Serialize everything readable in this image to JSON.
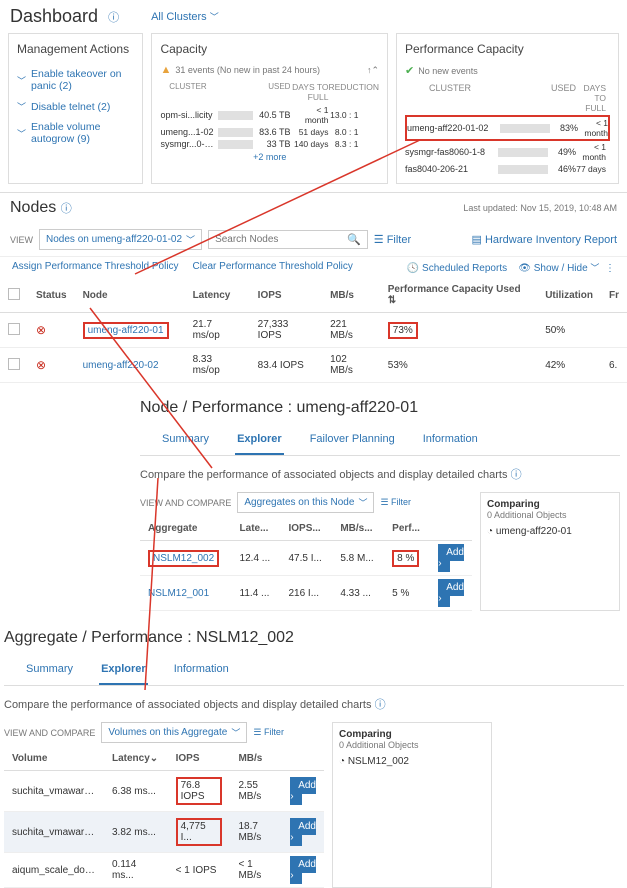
{
  "dashboard": {
    "title": "Dashboard",
    "scope": "All Clusters"
  },
  "mgmt": {
    "title": "Management Actions",
    "items": [
      {
        "label": "Enable takeover on panic (2)"
      },
      {
        "label": "Disable telnet (2)"
      },
      {
        "label": "Enable volume autogrow (9)"
      }
    ]
  },
  "capacity": {
    "title": "Capacity",
    "events": "31 events (No new in past 24 hours)",
    "headers": {
      "cluster": "CLUSTER",
      "used": "USED",
      "days": "DAYS TO FULL",
      "red": "REDUCTION"
    },
    "rows": [
      {
        "name": "opm-si...licity",
        "pct": 60,
        "used": "40.5 TB",
        "days": "< 1 month",
        "red": "13.0 : 1"
      },
      {
        "name": "umeng...1-02",
        "pct": 80,
        "used": "83.6 TB",
        "days": "51 days",
        "red": "8.0 : 1"
      },
      {
        "name": "sysmgr...0-1-8",
        "pct": 40,
        "used": "33 TB",
        "days": "140 days",
        "red": "8.3 : 1"
      }
    ],
    "more": "+2 more"
  },
  "perfcap": {
    "title": "Performance Capacity",
    "events": "No new events",
    "headers": {
      "cluster": "CLUSTER",
      "used": "USED",
      "days": "DAYS TO FULL"
    },
    "rows": [
      {
        "name": "umeng-aff220-01-02",
        "pct": 83,
        "used": "83%",
        "days": "< 1 month",
        "hl": true
      },
      {
        "name": "sysmgr-fas8060-1-8",
        "pct": 49,
        "used": "49%",
        "days": "< 1 month"
      },
      {
        "name": "fas8040-206-21",
        "pct": 46,
        "used": "46%",
        "days": "77 days"
      }
    ]
  },
  "nodes": {
    "title": "Nodes",
    "updated": "Last updated: Nov 15, 2019, 10:48 AM",
    "view_label": "VIEW",
    "view_value": "Nodes on umeng-aff220-01-02",
    "search_ph": "Search Nodes",
    "filter": "Filter",
    "hw_report": "Hardware Inventory Report",
    "assign": "Assign Performance Threshold Policy",
    "clear": "Clear Performance Threshold Policy",
    "scheduled": "Scheduled Reports",
    "showhide": "Show / Hide",
    "cols": {
      "status": "Status",
      "node": "Node",
      "latency": "Latency",
      "iops": "IOPS",
      "mbs": "MB/s",
      "perf": "Performance Capacity Used",
      "util": "Utilization",
      "fr": "Fr"
    },
    "rows": [
      {
        "node": "umeng-aff220-01",
        "lat": "21.7 ms/op",
        "iops": "27,333 IOPS",
        "mbs": "221 MB/s",
        "perf": "73%",
        "util": "50%",
        "hl": true
      },
      {
        "node": "umeng-aff220-02",
        "lat": "8.33 ms/op",
        "iops": "83.4 IOPS",
        "mbs": "102 MB/s",
        "perf": "53%",
        "util": "42%",
        "fr": "6."
      }
    ]
  },
  "nodeDetail": {
    "title": "Node / Performance : umeng-aff220-01",
    "tabs": [
      "Summary",
      "Explorer",
      "Failover Planning",
      "Information"
    ],
    "active": 1,
    "compare_txt": "Compare the performance of associated objects and display detailed charts",
    "vc_label": "VIEW AND COMPARE",
    "vc_value": "Aggregates on this Node",
    "filter": "Filter",
    "cols": {
      "agg": "Aggregate",
      "lat": "Late...",
      "iops": "IOPS...",
      "mbs": "MB/s...",
      "perf": "Perf..."
    },
    "rows": [
      {
        "agg": "NSLM12_002",
        "lat": "12.4 ...",
        "iops": "47.5 I...",
        "mbs": "5.8 M...",
        "perf": "8 %",
        "hl": true
      },
      {
        "agg": "NSLM12_001",
        "lat": "11.4 ...",
        "iops": "216 I...",
        "mbs": "4.33 ...",
        "perf": "5 %"
      }
    ],
    "add": "Add ›",
    "comparing": {
      "title": "Comparing",
      "sub": "0 Additional Objects",
      "item": "umeng-aff220-01"
    }
  },
  "aggDetail": {
    "title": "Aggregate / Performance : NSLM12_002",
    "tabs": [
      "Summary",
      "Explorer",
      "Information"
    ],
    "active": 1,
    "compare_txt": "Compare the performance of associated objects and display detailed charts",
    "vc_label": "VIEW AND COMPARE",
    "vc_value": "Volumes on this Aggregate",
    "filter": "Filter",
    "cols": {
      "vol": "Volume",
      "lat": "Latency",
      "iops": "IOPS",
      "mbs": "MB/s"
    },
    "rows": [
      {
        "vol": "suchita_vmaware_d...",
        "lat": "6.38 ms...",
        "iops": "76.8 IOPS",
        "mbs": "2.55 MB/s"
      },
      {
        "vol": "suchita_vmaware_d...",
        "lat": "3.82 ms...",
        "iops": "4,775 I...",
        "mbs": "18.7 MB/s",
        "sel": true
      },
      {
        "vol": "aiqum_scale_do_no...",
        "lat": "0.114 ms...",
        "iops": "< 1 IOPS",
        "mbs": "< 1 MB/s"
      }
    ],
    "add": "Add ›",
    "comparing": {
      "title": "Comparing",
      "sub": "0 Additional Objects",
      "item": "NSLM12_002"
    }
  }
}
